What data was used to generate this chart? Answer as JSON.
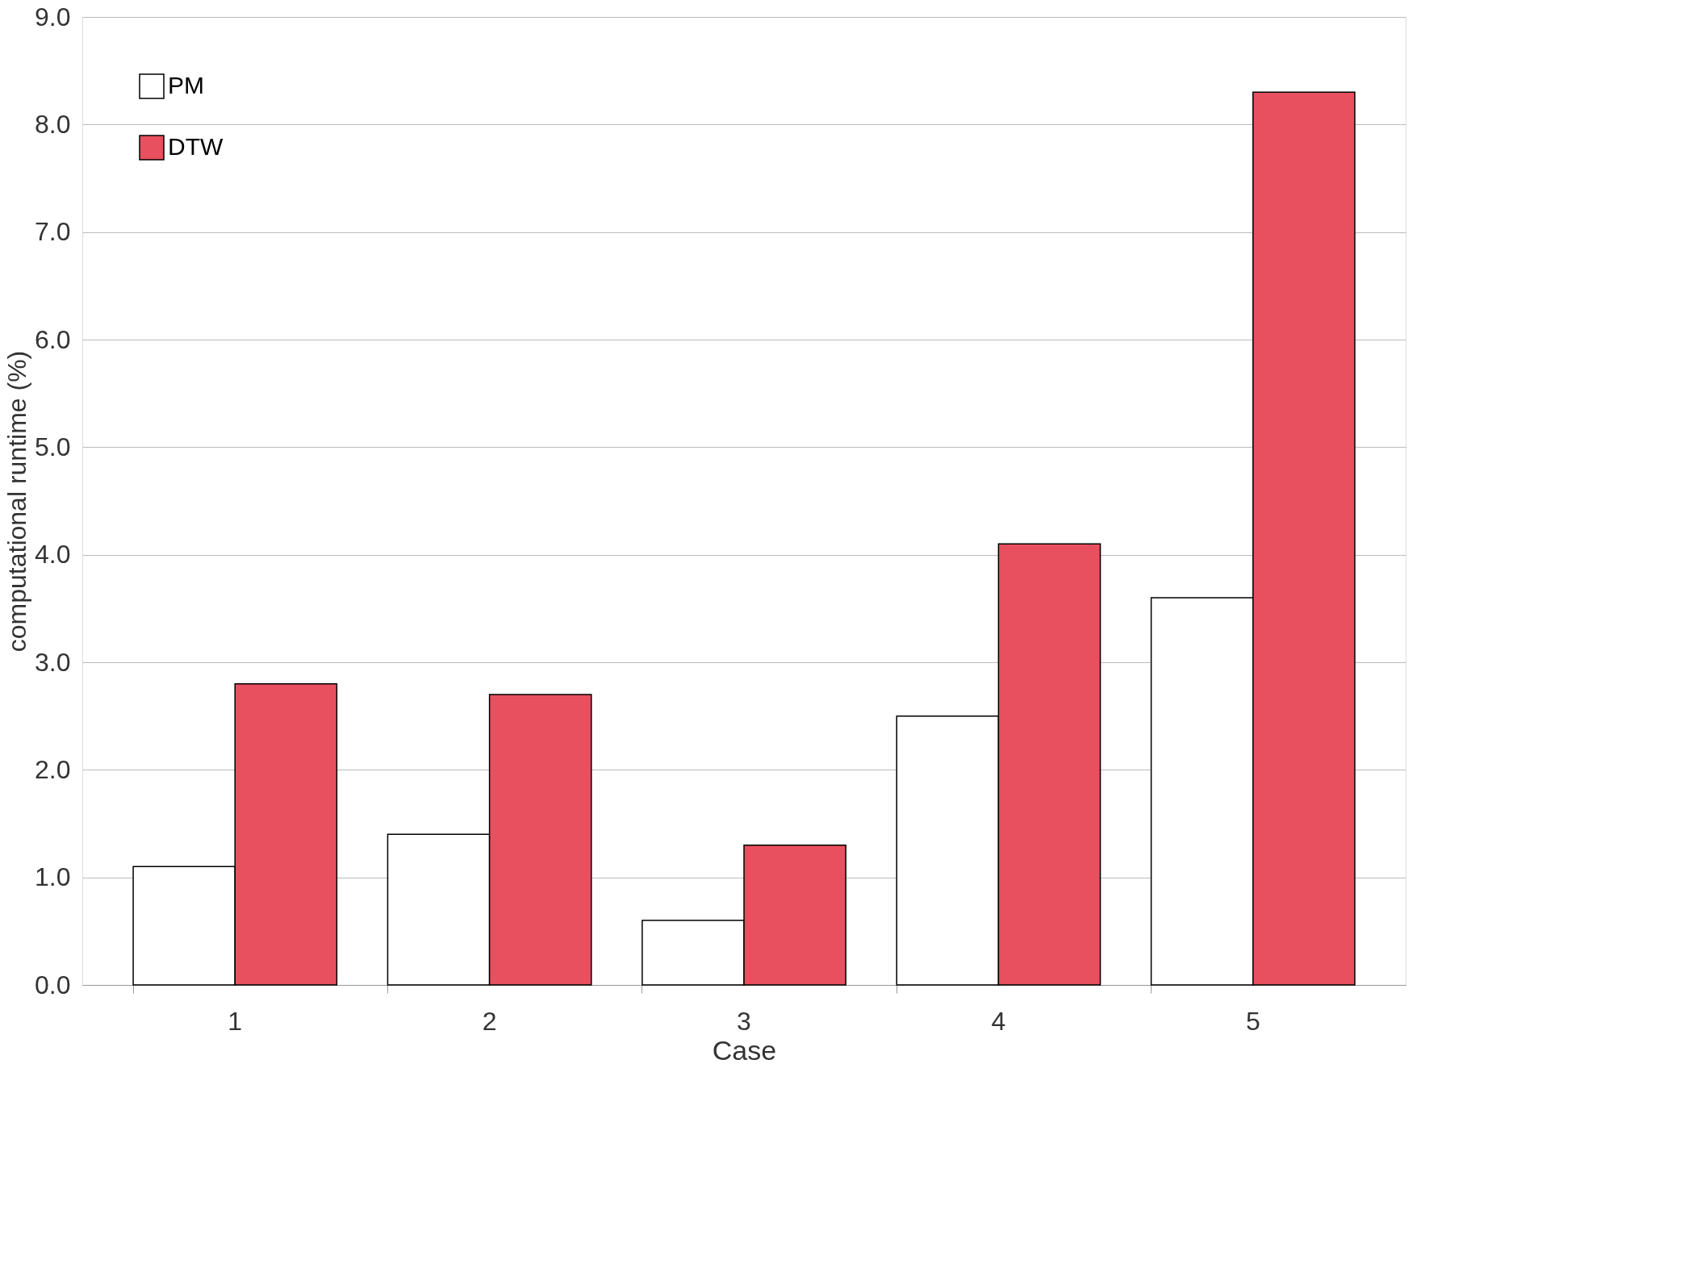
{
  "chart_data": {
    "type": "bar",
    "xlabel": "Case",
    "ylabel": "computational runtime (%)",
    "categories": [
      "1",
      "2",
      "3",
      "4",
      "5"
    ],
    "series": [
      {
        "name": "PM",
        "color": "#ffffff",
        "values": [
          1.1,
          1.4,
          0.6,
          2.5,
          3.6
        ]
      },
      {
        "name": "DTW",
        "color": "#e8505f",
        "values": [
          2.8,
          2.7,
          1.3,
          4.1,
          8.3
        ]
      }
    ],
    "ylim": [
      0,
      9
    ],
    "yticks": [
      {
        "value": 0,
        "label": "0.0"
      },
      {
        "value": 1,
        "label": "1.0"
      },
      {
        "value": 2,
        "label": "2.0"
      },
      {
        "value": 3,
        "label": "3.0"
      },
      {
        "value": 4,
        "label": "4.0"
      },
      {
        "value": 5,
        "label": "5.0"
      },
      {
        "value": 6,
        "label": "6.0"
      },
      {
        "value": 7,
        "label": "7.0"
      },
      {
        "value": 8,
        "label": "8.0"
      },
      {
        "value": 9,
        "label": "9.0"
      }
    ],
    "grid": "y",
    "legend": "top left"
  }
}
